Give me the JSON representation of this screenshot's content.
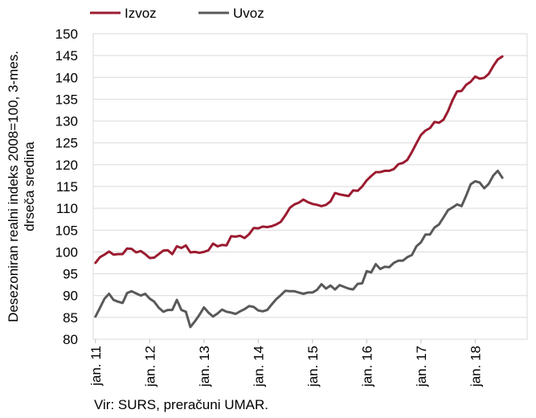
{
  "chart_data": {
    "type": "line",
    "ylabel_lines": [
      "Desezoniran realni indeks 2008=100, 3-mes.",
      "drseča sredina"
    ],
    "xlabel": "",
    "ylim": [
      80,
      150
    ],
    "y_ticks": [
      "80",
      "85",
      "90",
      "95",
      "100",
      "105",
      "110",
      "115",
      "120",
      "125",
      "130",
      "135",
      "140",
      "145",
      "150"
    ],
    "x_tick_labels": [
      "jan. 11",
      "jan. 12",
      "jan. 13",
      "jan. 14",
      "jan. 15",
      "jan. 16",
      "jan. 17",
      "jan. 18"
    ],
    "x_start": "2011-01",
    "grid": "horizontal",
    "legend_position": "top-left",
    "series": [
      {
        "name": "Izvoz",
        "color": "#9b1b30",
        "values": [
          97.5,
          98.8,
          99.4,
          100.1,
          99.4,
          99.5,
          99.5,
          100.8,
          100.7,
          99.9,
          100.2,
          99.5,
          98.6,
          98.7,
          99.5,
          100.3,
          100.4,
          99.5,
          101.3,
          100.9,
          101.5,
          99.9,
          100.0,
          99.8,
          100.0,
          100.4,
          101.9,
          101.3,
          101.6,
          101.5,
          103.6,
          103.5,
          103.7,
          103.2,
          104.1,
          105.5,
          105.4,
          105.8,
          105.7,
          105.9,
          106.3,
          106.9,
          108.4,
          110.1,
          110.9,
          111.3,
          112.0,
          111.4,
          111.0,
          110.8,
          110.5,
          110.8,
          111.6,
          113.5,
          113.2,
          113.0,
          112.8,
          114.1,
          114.0,
          115.0,
          116.4,
          117.4,
          118.3,
          118.3,
          118.6,
          118.6,
          119.0,
          120.1,
          120.4,
          121.1,
          122.9,
          124.9,
          126.8,
          127.8,
          128.4,
          129.8,
          129.6,
          130.3,
          132.3,
          134.8,
          136.8,
          136.9,
          138.3,
          139.0,
          140.2,
          139.7,
          139.9,
          140.8,
          142.6,
          144.1,
          144.8
        ]
      },
      {
        "name": "Uvoz",
        "color": "#595959",
        "values": [
          85.2,
          87.2,
          89.3,
          90.4,
          89.0,
          88.6,
          88.3,
          90.6,
          91.0,
          90.5,
          90.0,
          90.4,
          89.3,
          88.6,
          87.2,
          86.3,
          86.7,
          86.7,
          89.0,
          86.7,
          86.3,
          82.8,
          84.1,
          85.6,
          87.3,
          86.1,
          85.2,
          85.9,
          86.8,
          86.3,
          86.1,
          85.8,
          86.4,
          86.9,
          87.6,
          87.4,
          86.6,
          86.4,
          86.7,
          88.0,
          89.2,
          90.1,
          91.1,
          91.0,
          91.0,
          90.7,
          90.4,
          90.7,
          90.7,
          91.3,
          92.6,
          91.6,
          92.3,
          91.4,
          92.4,
          92.0,
          91.6,
          91.4,
          92.7,
          92.8,
          95.6,
          95.3,
          97.2,
          96.1,
          96.6,
          96.5,
          97.5,
          98.0,
          98.0,
          98.8,
          99.3,
          101.3,
          102.2,
          104.0,
          104.0,
          105.6,
          106.3,
          107.9,
          109.6,
          110.2,
          110.9,
          110.5,
          112.9,
          115.5,
          116.2,
          115.9,
          114.6,
          115.6,
          117.5,
          118.6,
          117.0
        ]
      }
    ]
  },
  "source_text": "Vir: SURS, preračuni UMAR."
}
